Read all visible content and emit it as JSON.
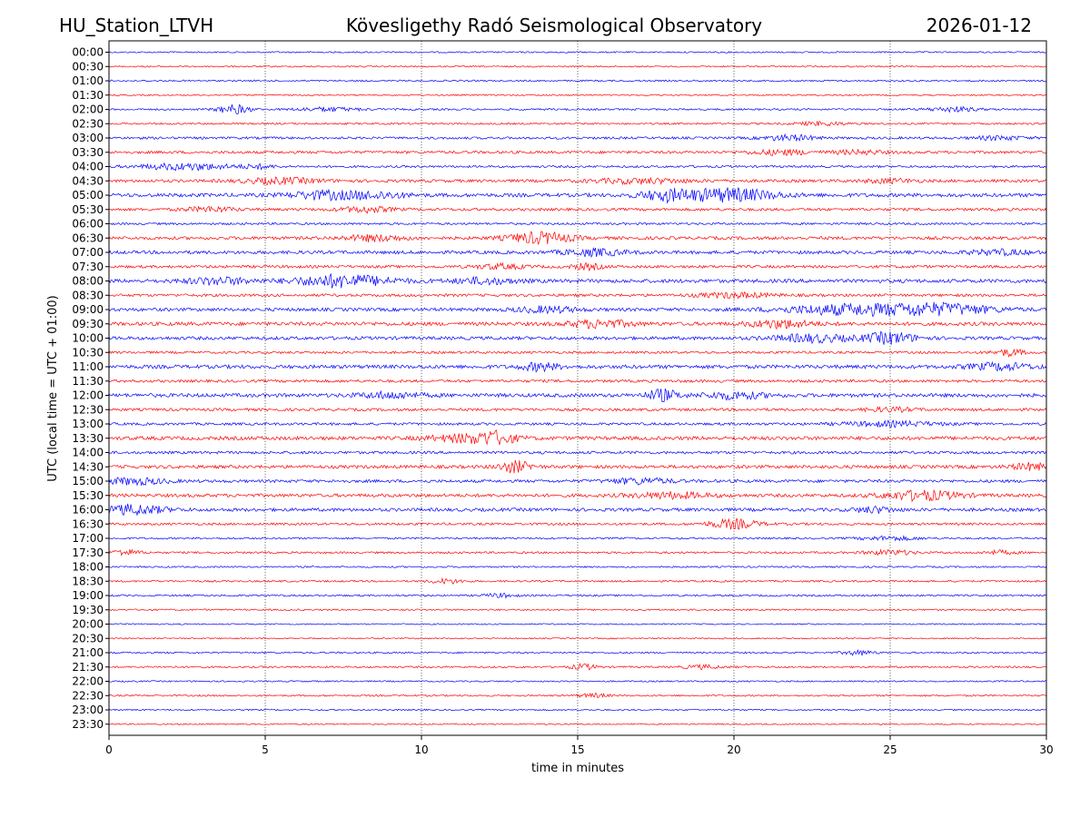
{
  "header": {
    "station": "HU_Station_LTVH",
    "observatory": "Kövesligethy Radó Seismological Observatory",
    "date": "2026-01-12"
  },
  "chart_data": {
    "type": "line",
    "title": "Kövesligethy Radó Seismological Observatory",
    "xlabel": "time in minutes",
    "ylabel": "UTC (local time = UTC + 01:00)",
    "xlim": [
      0,
      30
    ],
    "x_ticks": [
      0,
      5,
      10,
      15,
      20,
      25,
      30
    ],
    "x_tick_labels": [
      "0",
      "5",
      "10",
      "15",
      "20",
      "25",
      "30"
    ],
    "grid_x": true,
    "colors": {
      "even_rows": "#0000ff",
      "odd_rows": "#ff0000"
    },
    "rows": [
      {
        "label": "00:00",
        "noise": 0.8,
        "bursts": []
      },
      {
        "label": "00:30",
        "noise": 0.8,
        "bursts": []
      },
      {
        "label": "01:00",
        "noise": 0.9,
        "bursts": []
      },
      {
        "label": "01:30",
        "noise": 0.8,
        "bursts": []
      },
      {
        "label": "02:00",
        "noise": 1.0,
        "bursts": [
          [
            4.0,
            0.5,
            5
          ],
          [
            7.0,
            1.0,
            2
          ],
          [
            27.0,
            0.8,
            2.5
          ]
        ]
      },
      {
        "label": "02:30",
        "noise": 1.0,
        "bursts": [
          [
            22.8,
            0.8,
            2
          ]
        ]
      },
      {
        "label": "03:00",
        "noise": 1.3,
        "bursts": [
          [
            21.8,
            0.8,
            3
          ],
          [
            28.5,
            0.8,
            2
          ]
        ]
      },
      {
        "label": "03:30",
        "noise": 1.5,
        "bursts": [
          [
            21.5,
            1.0,
            2.5
          ],
          [
            24.0,
            0.8,
            2
          ]
        ]
      },
      {
        "label": "04:00",
        "noise": 1.2,
        "bursts": [
          [
            2.5,
            1.5,
            3.5
          ],
          [
            4.8,
            0.5,
            2
          ]
        ]
      },
      {
        "label": "04:30",
        "noise": 1.6,
        "bursts": [
          [
            5.5,
            1.2,
            3
          ],
          [
            17.0,
            1.5,
            2.5
          ],
          [
            25.0,
            0.8,
            2
          ]
        ]
      },
      {
        "label": "05:00",
        "noise": 2.0,
        "bursts": [
          [
            6.8,
            1.0,
            4
          ],
          [
            8.5,
            1.0,
            3.5
          ],
          [
            17.8,
            0.8,
            5
          ],
          [
            19.8,
            1.5,
            7
          ]
        ]
      },
      {
        "label": "05:30",
        "noise": 1.5,
        "bursts": [
          [
            3.2,
            0.8,
            2.5
          ],
          [
            8.2,
            0.8,
            3
          ]
        ]
      },
      {
        "label": "06:00",
        "noise": 1.2,
        "bursts": []
      },
      {
        "label": "06:30",
        "noise": 1.7,
        "bursts": [
          [
            8.5,
            1.0,
            3
          ],
          [
            13.8,
            1.0,
            6
          ]
        ]
      },
      {
        "label": "07:00",
        "noise": 1.8,
        "bursts": [
          [
            15.5,
            1.0,
            3.5
          ],
          [
            28.5,
            1.0,
            2.5
          ]
        ]
      },
      {
        "label": "07:30",
        "noise": 1.5,
        "bursts": [
          [
            12.5,
            0.8,
            2.5
          ],
          [
            15.3,
            0.5,
            3
          ]
        ]
      },
      {
        "label": "08:00",
        "noise": 2.0,
        "bursts": [
          [
            3.5,
            1.0,
            3.5
          ],
          [
            7.5,
            1.5,
            6.5
          ],
          [
            12.0,
            1.0,
            3
          ]
        ]
      },
      {
        "label": "08:30",
        "noise": 1.5,
        "bursts": [
          [
            20.0,
            1.2,
            2.5
          ]
        ]
      },
      {
        "label": "09:00",
        "noise": 1.8,
        "bursts": [
          [
            14.0,
            1.0,
            3
          ],
          [
            23.5,
            2.0,
            5
          ],
          [
            26.5,
            1.8,
            6
          ]
        ]
      },
      {
        "label": "09:30",
        "noise": 2.0,
        "bursts": [
          [
            15.7,
            1.0,
            4
          ],
          [
            21.5,
            1.0,
            4
          ]
        ]
      },
      {
        "label": "10:00",
        "noise": 1.8,
        "bursts": [
          [
            22.5,
            1.2,
            4
          ],
          [
            25.0,
            0.8,
            6
          ]
        ]
      },
      {
        "label": "10:30",
        "noise": 1.3,
        "bursts": [
          [
            28.8,
            0.5,
            3.5
          ]
        ]
      },
      {
        "label": "11:00",
        "noise": 2.0,
        "bursts": [
          [
            13.8,
            0.6,
            4
          ],
          [
            28.5,
            1.0,
            3.5
          ]
        ]
      },
      {
        "label": "11:30",
        "noise": 1.5,
        "bursts": []
      },
      {
        "label": "12:00",
        "noise": 2.0,
        "bursts": [
          [
            9.0,
            1.0,
            3
          ],
          [
            17.7,
            0.5,
            6
          ],
          [
            20.0,
            1.0,
            3.5
          ]
        ]
      },
      {
        "label": "12:30",
        "noise": 1.5,
        "bursts": [
          [
            25.0,
            0.8,
            2
          ]
        ]
      },
      {
        "label": "13:00",
        "noise": 1.4,
        "bursts": [
          [
            25.0,
            1.5,
            2.5
          ]
        ]
      },
      {
        "label": "13:30",
        "noise": 2.0,
        "bursts": [
          [
            11.5,
            1.2,
            4
          ],
          [
            12.4,
            0.6,
            5
          ]
        ]
      },
      {
        "label": "14:00",
        "noise": 1.5,
        "bursts": []
      },
      {
        "label": "14:30",
        "noise": 1.8,
        "bursts": [
          [
            13.0,
            0.5,
            6
          ],
          [
            29.5,
            0.6,
            3.5
          ]
        ]
      },
      {
        "label": "15:00",
        "noise": 1.6,
        "bursts": [
          [
            0.8,
            1.0,
            3.5
          ],
          [
            17.0,
            1.0,
            3
          ]
        ]
      },
      {
        "label": "15:30",
        "noise": 1.8,
        "bursts": [
          [
            18.0,
            1.2,
            3
          ],
          [
            26.0,
            1.2,
            5
          ]
        ]
      },
      {
        "label": "16:00",
        "noise": 1.8,
        "bursts": [
          [
            0.8,
            1.0,
            5
          ],
          [
            24.5,
            0.6,
            3
          ]
        ]
      },
      {
        "label": "16:30",
        "noise": 1.3,
        "bursts": [
          [
            20.0,
            0.8,
            5
          ]
        ]
      },
      {
        "label": "17:00",
        "noise": 1.0,
        "bursts": [
          [
            25.0,
            1.0,
            2
          ]
        ]
      },
      {
        "label": "17:30",
        "noise": 1.1,
        "bursts": [
          [
            0.5,
            0.5,
            3
          ],
          [
            25.0,
            0.8,
            2.5
          ],
          [
            28.5,
            0.5,
            2
          ]
        ]
      },
      {
        "label": "18:00",
        "noise": 0.9,
        "bursts": []
      },
      {
        "label": "18:30",
        "noise": 1.0,
        "bursts": [
          [
            10.8,
            0.5,
            2.5
          ]
        ]
      },
      {
        "label": "19:00",
        "noise": 1.0,
        "bursts": [
          [
            12.5,
            0.5,
            2
          ]
        ]
      },
      {
        "label": "19:30",
        "noise": 0.9,
        "bursts": []
      },
      {
        "label": "20:00",
        "noise": 0.7,
        "bursts": []
      },
      {
        "label": "20:30",
        "noise": 0.7,
        "bursts": []
      },
      {
        "label": "21:00",
        "noise": 0.9,
        "bursts": [
          [
            24.0,
            0.5,
            2.5
          ]
        ]
      },
      {
        "label": "21:30",
        "noise": 1.0,
        "bursts": [
          [
            15.2,
            0.4,
            3
          ],
          [
            19.0,
            0.6,
            2
          ]
        ]
      },
      {
        "label": "22:00",
        "noise": 0.8,
        "bursts": []
      },
      {
        "label": "22:30",
        "noise": 0.9,
        "bursts": [
          [
            15.5,
            0.5,
            2
          ]
        ]
      },
      {
        "label": "23:00",
        "noise": 0.8,
        "bursts": []
      },
      {
        "label": "23:30",
        "noise": 0.7,
        "bursts": []
      }
    ]
  }
}
